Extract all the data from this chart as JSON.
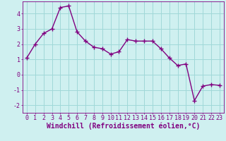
{
  "x": [
    0,
    1,
    2,
    3,
    4,
    5,
    6,
    7,
    8,
    9,
    10,
    11,
    12,
    13,
    14,
    15,
    16,
    17,
    18,
    19,
    20,
    21,
    22,
    23
  ],
  "y": [
    1.1,
    2.0,
    2.7,
    3.0,
    4.4,
    4.5,
    2.8,
    2.2,
    1.8,
    1.7,
    1.35,
    1.5,
    2.3,
    2.2,
    2.2,
    2.2,
    1.7,
    1.1,
    0.6,
    0.7,
    -1.7,
    -0.75,
    -0.65,
    -0.7
  ],
  "line_color": "#800080",
  "marker": "+",
  "marker_size": 4,
  "bg_color": "#cff0f0",
  "grid_color": "#a0d8d8",
  "xlabel": "Windchill (Refroidissement éolien,°C)",
  "xlabel_color": "#800080",
  "xlabel_fontsize": 7,
  "tick_color": "#800080",
  "tick_fontsize": 6,
  "ylim": [
    -2.5,
    4.8
  ],
  "xlim": [
    -0.5,
    23.5
  ],
  "yticks": [
    -2,
    -1,
    0,
    1,
    2,
    3,
    4
  ],
  "xticks": [
    0,
    1,
    2,
    3,
    4,
    5,
    6,
    7,
    8,
    9,
    10,
    11,
    12,
    13,
    14,
    15,
    16,
    17,
    18,
    19,
    20,
    21,
    22,
    23
  ],
  "line_width": 1.0
}
